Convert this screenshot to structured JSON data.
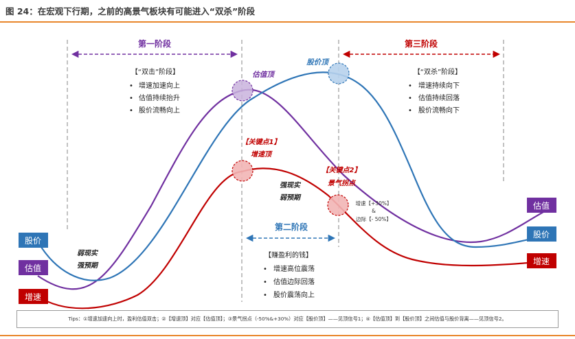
{
  "title": "图 24：在宏观下行期，之前的高景气板块有可能进入“双杀”阶段",
  "colors": {
    "valuation": "#7030a0",
    "price": "#2e75b6",
    "growth": "#c00000",
    "accent_rule": "#e8852a"
  },
  "phases": [
    {
      "label": "第一阶段",
      "color": "#7030a0"
    },
    {
      "label": "第二阶段",
      "color": "#2e75b6"
    },
    {
      "label": "第三阶段",
      "color": "#c00000"
    }
  ],
  "phase1_box": {
    "heading": "【“双击”阶段】",
    "bullets": [
      "增速加速向上",
      "估值持续抬升",
      "股价流畅向上"
    ]
  },
  "phase2_box": {
    "heading": "【赚盈利的钱】",
    "bullets": [
      "增速高位震荡",
      "估值边际回落",
      "股价震荡向上"
    ]
  },
  "phase3_box": {
    "heading": "【“双杀”阶段】",
    "bullets": [
      "增速持续向下",
      "估值持续回落",
      "股价流畅向下"
    ]
  },
  "points": {
    "valuation_top": "估值顶",
    "price_top": "股价顶",
    "key_point_1": "【关键点1】",
    "growth_top": "增速顶",
    "key_point_2": "【关键点2】",
    "inflection": "景气拐点",
    "inflection_note": [
      "增速【+30%】",
      "&",
      "边际【- 50%】"
    ]
  },
  "annotations": {
    "left_weak_1": "弱现实",
    "left_weak_2": "强预期",
    "mid_strong_1": "强现实",
    "mid_strong_2": "弱预期"
  },
  "legend_left": [
    "股价",
    "估值",
    "增速"
  ],
  "legend_right": [
    "估值",
    "股价",
    "增速"
  ],
  "tips": "Tips：①增速加速向上时，盈利估值双击；②【增速顶】对应【估值顶】；③景气拐点（-50%&+30%）对应【股价顶】——见顶信号1；④【估值顶】到【股价顶】之间估值与股价背离——见顶信号2。"
}
